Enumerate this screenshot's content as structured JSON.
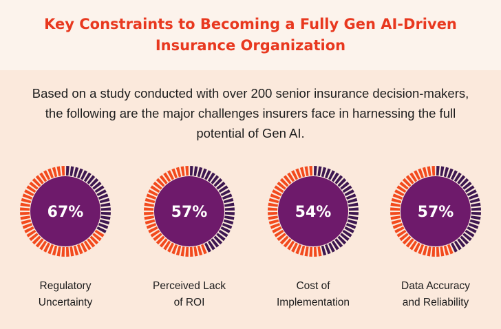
{
  "header": {
    "title_line1": "Key Constraints to Becoming a Fully Gen AI-Driven",
    "title_line2": "Insurance Organization"
  },
  "intro": "Based on a study conducted with over 200 senior insurance decision-makers, the following are the major challenges insurers face in harnessing the full potential of Gen AI.",
  "colors": {
    "accent": "#e8381f",
    "filled_segment": "#f24a1d",
    "empty_segment": "#3d1750",
    "center": "#6e1a6b",
    "background": "#fbe9dc",
    "header_background": "#fcf3ec"
  },
  "chart_data": {
    "type": "pie",
    "categories": [
      "Regulatory Uncertainty",
      "Perceived Lack of ROI",
      "Cost of Implementation",
      "Data Accuracy and Reliability"
    ],
    "values": [
      67,
      57,
      54,
      57
    ],
    "unit": "%",
    "items": [
      {
        "value": 67,
        "label": "67%",
        "label_line1": "Regulatory",
        "label_line2": "Uncertainty"
      },
      {
        "value": 57,
        "label": "57%",
        "label_line1": "Perceived Lack",
        "label_line2": "of ROI"
      },
      {
        "value": 54,
        "label": "54%",
        "label_line1": "Cost of",
        "label_line2": "Implementation"
      },
      {
        "value": 57,
        "label": "57%",
        "label_line1": "Data Accuracy",
        "label_line2": "and Reliability"
      }
    ]
  }
}
